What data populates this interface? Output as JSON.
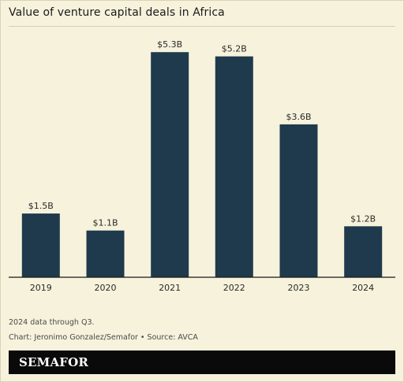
{
  "chart_data": {
    "type": "bar",
    "title": "Value of venture capital deals in Africa",
    "categories": [
      "2019",
      "2020",
      "2021",
      "2022",
      "2023",
      "2024"
    ],
    "values": [
      1.5,
      1.1,
      5.3,
      5.2,
      3.6,
      1.2
    ],
    "data_labels": [
      "$1.5B",
      "$1.1B",
      "$5.3B",
      "$5.2B",
      "$3.6B",
      "$1.2B"
    ],
    "xlabel": "",
    "ylabel": "",
    "ylim": [
      0,
      5.6
    ],
    "grid": false,
    "legend": "none",
    "bar_color": "#1e3a4c"
  },
  "notes": {
    "line1": "2024 data through Q3.",
    "line2": "Chart: Jeronimo Gonzalez/Semafor • Source: AVCA"
  },
  "brand": {
    "name": "SEMAFOR",
    "bar_color": "#0a0a0a"
  },
  "colors": {
    "background": "#f6f2dc"
  }
}
